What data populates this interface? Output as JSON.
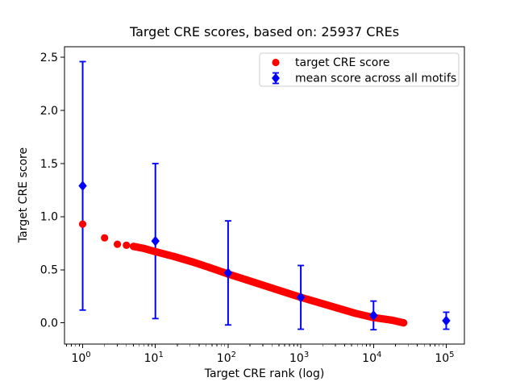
{
  "figure": {
    "title": "Target CRE scores, based on: 25937 CREs",
    "background": "#ffffff",
    "x_axis": {
      "label": "Target CRE rank (log)",
      "scale": "log",
      "tick_base": "10",
      "tick_exponents": [
        "0",
        "1",
        "2",
        "3",
        "4",
        "5"
      ]
    },
    "y_axis": {
      "label": "Target CRE score",
      "tick_labels": [
        "0.0",
        "0.5",
        "1.0",
        "1.5",
        "2.0",
        "2.5"
      ]
    },
    "legend": {
      "entries": [
        {
          "label": "target CRE score",
          "marker": "red-circle"
        },
        {
          "label": "mean score across all motifs",
          "marker": "blue-diamond-errorbar"
        }
      ],
      "border_color": "#cccccc"
    },
    "colors": {
      "target_series": "#ff0000",
      "mean_series": "#0000ff",
      "axis": "#000000"
    }
  },
  "chart_data": {
    "type": "scatter",
    "title": "Target CRE scores, based on: 25937 CREs",
    "xlabel": "Target CRE rank (log)",
    "ylabel": "Target CRE score",
    "xscale": "log",
    "xlim": [
      0.5623,
      177828
    ],
    "ylim": [
      -0.2,
      2.6
    ],
    "xticks": [
      1,
      10,
      100,
      1000,
      10000,
      100000
    ],
    "yticks": [
      0.0,
      0.5,
      1.0,
      1.5,
      2.0,
      2.5
    ],
    "grid": false,
    "legend_position": "upper center-right inside axes",
    "series": [
      {
        "name": "target CRE score",
        "type": "dense-scatter",
        "color": "#ff0000",
        "marker": "circle",
        "n_points": 25937,
        "sampled_points": [
          [
            1,
            0.93
          ],
          [
            2,
            0.8
          ],
          [
            3,
            0.74
          ],
          [
            4,
            0.73
          ],
          [
            5,
            0.72
          ],
          [
            7,
            0.7
          ],
          [
            10,
            0.67
          ],
          [
            18,
            0.625
          ],
          [
            32,
            0.575
          ],
          [
            56,
            0.52
          ],
          [
            100,
            0.46
          ],
          [
            178,
            0.405
          ],
          [
            316,
            0.35
          ],
          [
            562,
            0.295
          ],
          [
            1000,
            0.24
          ],
          [
            1778,
            0.19
          ],
          [
            3162,
            0.14
          ],
          [
            5623,
            0.09
          ],
          [
            10000,
            0.05
          ],
          [
            17783,
            0.025
          ],
          [
            25937,
            0.0
          ]
        ]
      },
      {
        "name": "mean score across all motifs",
        "type": "errorbar",
        "color": "#0000ff",
        "marker": "diamond",
        "x": [
          1,
          10,
          100,
          1000,
          10000,
          100000
        ],
        "y": [
          1.29,
          0.77,
          0.47,
          0.24,
          0.07,
          0.02
        ],
        "yerr": [
          1.17,
          0.73,
          0.49,
          0.3,
          0.135,
          0.08
        ]
      }
    ]
  }
}
